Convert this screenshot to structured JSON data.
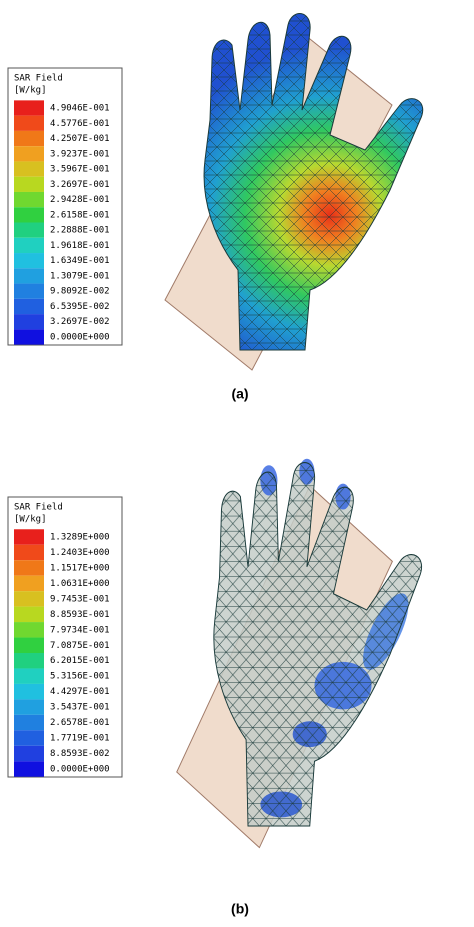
{
  "panels": [
    {
      "legend": {
        "title": "SAR Field",
        "unit": "[W/kg]",
        "levels": [
          "4.9046E-001",
          "4.5776E-001",
          "4.2507E-001",
          "3.9237E-001",
          "3.5967E-001",
          "3.2697E-001",
          "2.9428E-001",
          "2.6158E-001",
          "2.2888E-001",
          "1.9618E-001",
          "1.6349E-001",
          "1.3079E-001",
          "9.8092E-002",
          "6.5395E-002",
          "3.2697E-002",
          "0.0000E+000"
        ],
        "colors": [
          "#e8201c",
          "#f04a1a",
          "#f07818",
          "#f0a020",
          "#d8c020",
          "#b8d820",
          "#70d830",
          "#30d040",
          "#20d080",
          "#20d0c0",
          "#20c0e0",
          "#20a0e0",
          "#2080e0",
          "#2060e0",
          "#2040e0",
          "#1010e0"
        ]
      },
      "caption": "(a)"
    },
    {
      "legend": {
        "title": "SAR Field",
        "unit": "[W/kg]",
        "levels": [
          "1.3289E+000",
          "1.2403E+000",
          "1.1517E+000",
          "1.0631E+000",
          "9.7453E-001",
          "8.8593E-001",
          "7.9734E-001",
          "7.0875E-001",
          "6.2015E-001",
          "5.3156E-001",
          "4.4297E-001",
          "3.5437E-001",
          "2.6578E-001",
          "1.7719E-001",
          "8.8593E-002",
          "0.0000E+000"
        ],
        "colors": [
          "#e8201c",
          "#f04a1a",
          "#f07818",
          "#f0a020",
          "#d8c020",
          "#b8d820",
          "#70d830",
          "#30d040",
          "#20d080",
          "#20d0c0",
          "#20c0e0",
          "#20a0e0",
          "#2080e0",
          "#2060e0",
          "#2040e0",
          "#1010e0"
        ]
      },
      "caption": "(b)"
    }
  ]
}
